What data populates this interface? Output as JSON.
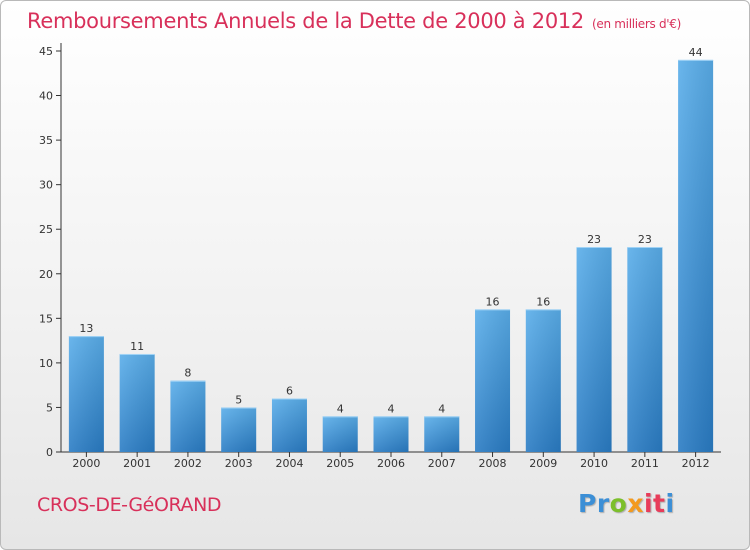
{
  "chart_data": {
    "type": "bar",
    "title": "Remboursements Annuels de la Dette de 2000 à 2012",
    "subtitle": "(en milliers d'€)",
    "categories": [
      "2000",
      "2001",
      "2002",
      "2003",
      "2004",
      "2005",
      "2006",
      "2007",
      "2008",
      "2009",
      "2010",
      "2011",
      "2012"
    ],
    "values": [
      13,
      11,
      8,
      5,
      6,
      4,
      4,
      4,
      16,
      16,
      23,
      23,
      44
    ],
    "ylim": [
      0,
      45
    ],
    "yticks": [
      0,
      5,
      10,
      15,
      20,
      25,
      30,
      35,
      40,
      45
    ],
    "xlabel": "",
    "ylabel": "",
    "grid": false,
    "bar_color": "#3a8fd5"
  },
  "location": "CROS-DE-GéORAND",
  "logo": {
    "text": "Proxiti",
    "parts": [
      "Pr",
      "o",
      "x",
      "it",
      "i"
    ]
  },
  "colors": {
    "accent": "#d8305a",
    "axis": "#333333"
  }
}
